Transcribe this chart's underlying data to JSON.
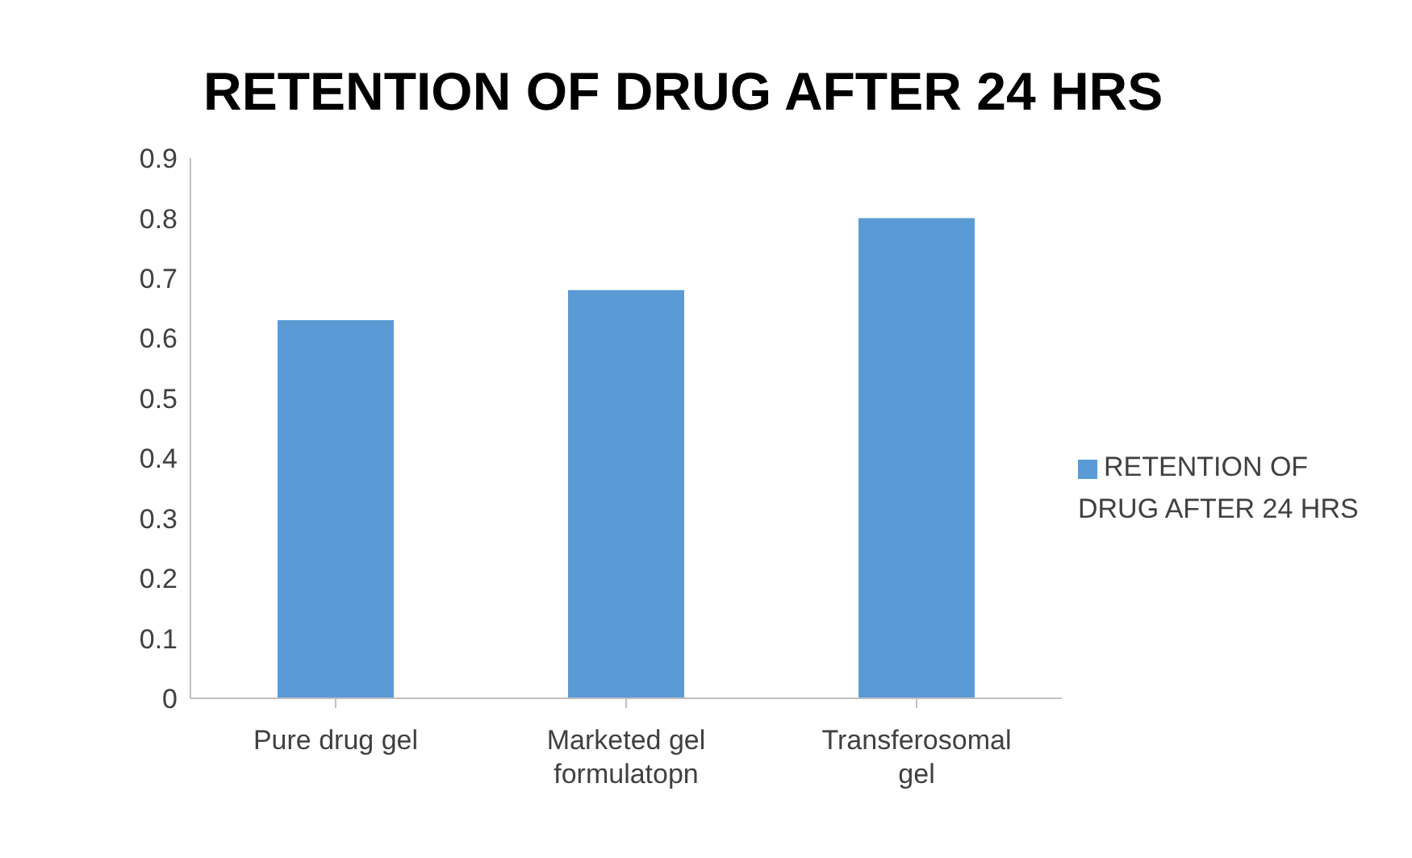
{
  "chart_data": {
    "type": "bar",
    "title": "RETENTION OF DRUG AFTER 24 HRS",
    "categories": [
      "Pure drug gel",
      "Marketed gel formulatopn",
      "Transferosomal gel"
    ],
    "series": [
      {
        "name": "RETENTION OF DRUG AFTER 24 HRS",
        "color": "#5b9bd5",
        "values": [
          0.63,
          0.68,
          0.8
        ]
      }
    ],
    "ylim": [
      0,
      0.9
    ],
    "yticks": [
      0,
      0.1,
      0.2,
      0.3,
      0.4,
      0.5,
      0.6,
      0.7,
      0.8,
      0.9
    ],
    "grid": false,
    "legend": "right"
  }
}
